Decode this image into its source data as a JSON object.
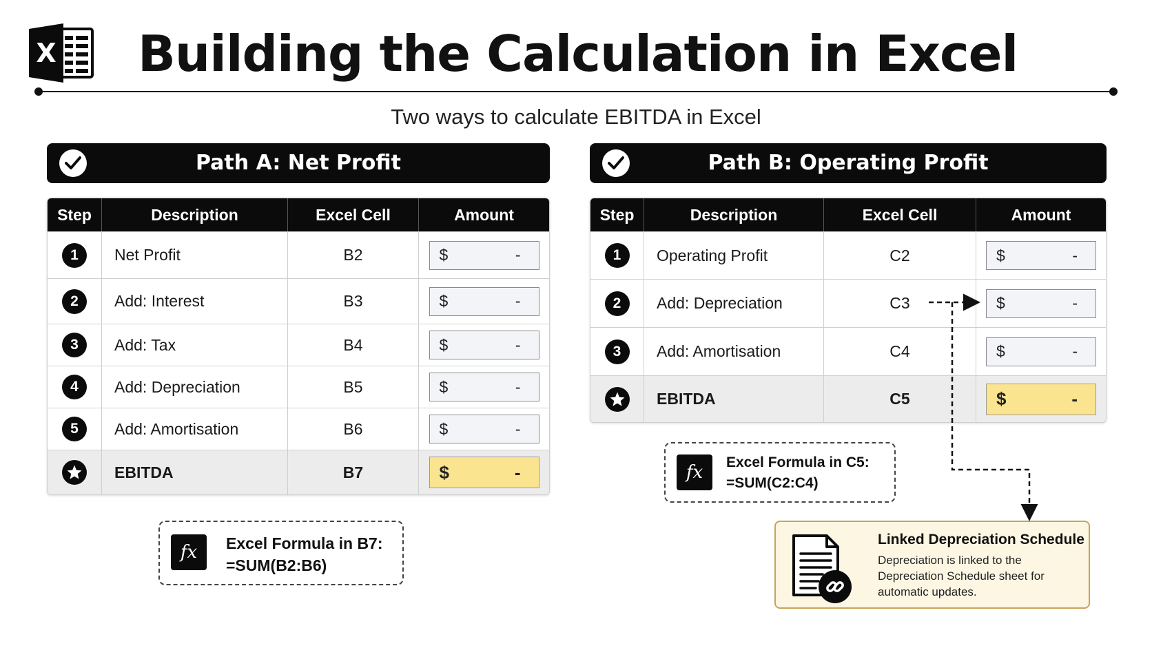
{
  "header": {
    "logo_letter": "X",
    "title": "Building the Calculation in Excel",
    "subtitle": "Two ways to calculate EBITDA in Excel"
  },
  "colors": {
    "dark": "#0b0b0b",
    "amount_box": "#f2f4f7",
    "total_highlight": "#fbe48f",
    "total_row": "#ececec",
    "linked_bg": "#fcf6e3",
    "linked_border": "#c9a357"
  },
  "columns": {
    "step": "Step",
    "description": "Description",
    "excel_cell": "Excel Cell",
    "amount": "Amount"
  },
  "path_a": {
    "title": "Path A: Net Profit",
    "rows": [
      {
        "step": "1",
        "description": "Net Profit",
        "cell": "B2",
        "currency": "$",
        "value": "-"
      },
      {
        "step": "2",
        "description": "Add: Interest",
        "cell": "B3",
        "currency": "$",
        "value": "-"
      },
      {
        "step": "3",
        "description": "Add: Tax",
        "cell": "B4",
        "currency": "$",
        "value": "-"
      },
      {
        "step": "4",
        "description": "Add: Depreciation",
        "cell": "B5",
        "currency": "$",
        "value": "-"
      },
      {
        "step": "5",
        "description": "Add: Amortisation",
        "cell": "B6",
        "currency": "$",
        "value": "-"
      }
    ],
    "total": {
      "icon": "star-icon",
      "description": "EBITDA",
      "cell": "B7",
      "currency": "$",
      "value": "-"
    },
    "formula": {
      "label": "Excel Formula in B7:",
      "expression": "=SUM(B2:B6)",
      "icon": "fx-icon"
    }
  },
  "path_b": {
    "title": "Path B: Operating Profit",
    "rows": [
      {
        "step": "1",
        "description": "Operating Profit",
        "cell": "C2",
        "currency": "$",
        "value": "-"
      },
      {
        "step": "2",
        "description": "Add: Depreciation",
        "cell": "C3",
        "currency": "$",
        "value": "-"
      },
      {
        "step": "3",
        "description": "Add: Amortisation",
        "cell": "C4",
        "currency": "$",
        "value": "-"
      }
    ],
    "total": {
      "icon": "star-icon",
      "description": "EBITDA",
      "cell": "C5",
      "currency": "$",
      "value": "-"
    },
    "formula": {
      "label": "Excel Formula in C5:",
      "expression": "=SUM(C2:C4)",
      "icon": "fx-icon"
    }
  },
  "linked_schedule": {
    "title": "Linked Depreciation Schedule",
    "text": "Depreciation is linked to the Depreciation Schedule sheet for automatic updates.",
    "icon": "linked-document-icon"
  }
}
